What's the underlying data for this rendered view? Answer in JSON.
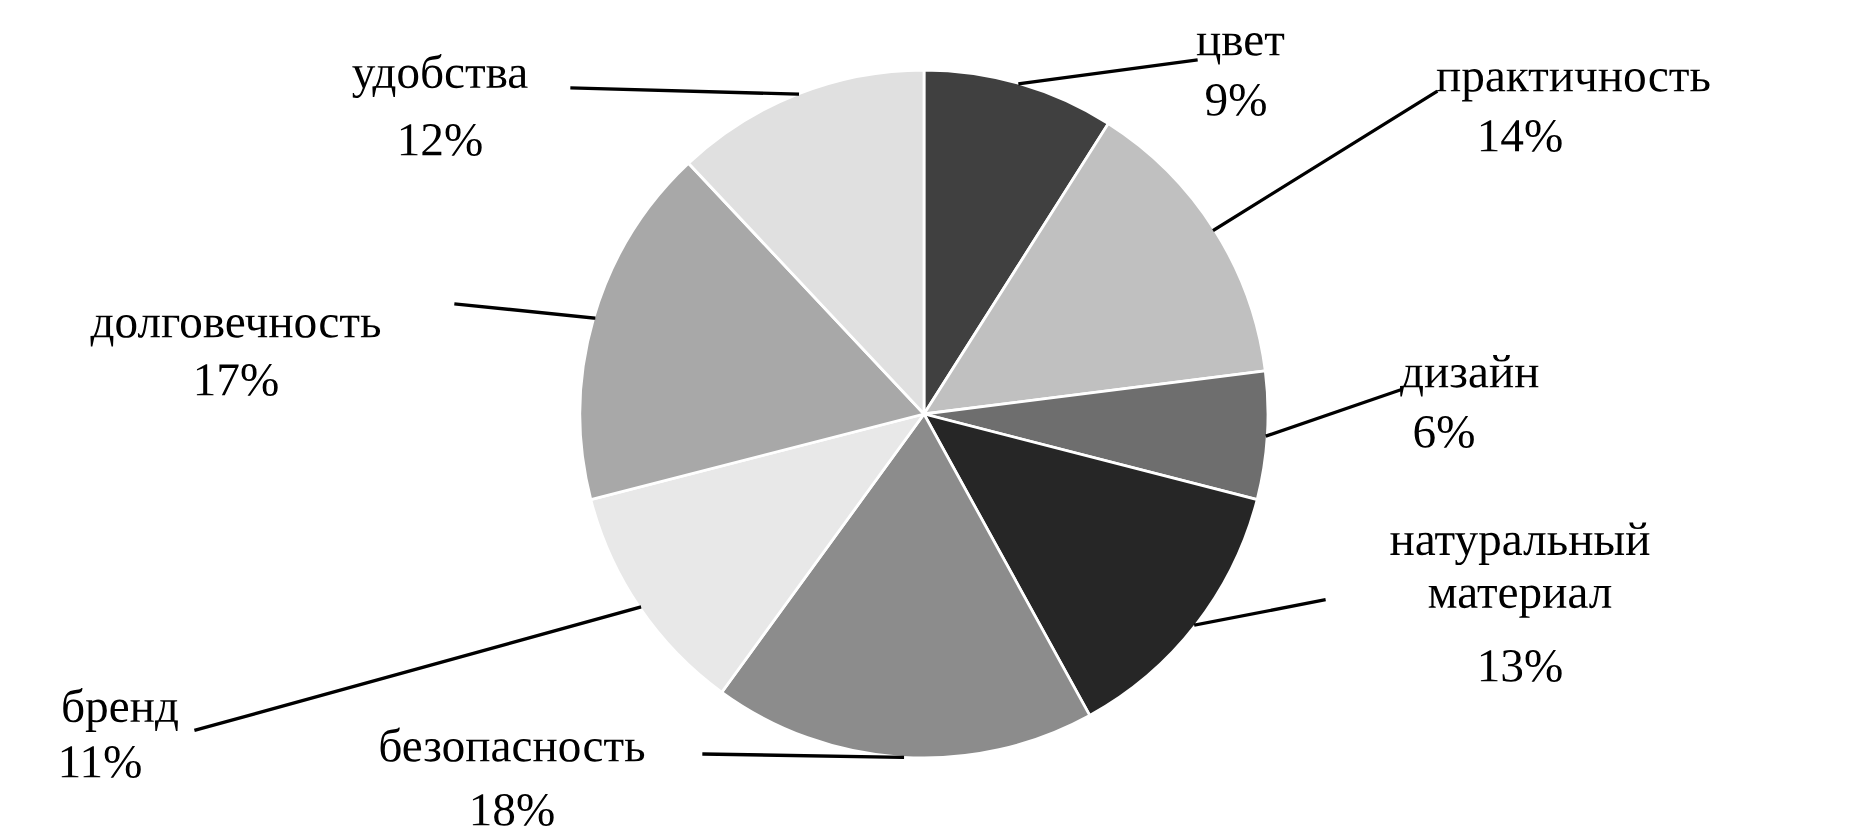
{
  "chart_data": {
    "type": "pie",
    "categories": [
      "цвет",
      "практичность",
      "дизайн",
      "натуральный\nматериал",
      "безопасность",
      "бренд",
      "долговечность",
      "удобства"
    ],
    "values": [
      9,
      14,
      6,
      13,
      18,
      11,
      17,
      12
    ],
    "value_labels": [
      "9%",
      "14%",
      "6%",
      "13%",
      "18%",
      "11%",
      "17%",
      "12%"
    ],
    "colors": [
      "#404040",
      "#c0c0c0",
      "#6e6e6e",
      "#262626",
      "#8c8c8c",
      "#e8e8e8",
      "#a8a8a8",
      "#e0e0e0"
    ]
  }
}
